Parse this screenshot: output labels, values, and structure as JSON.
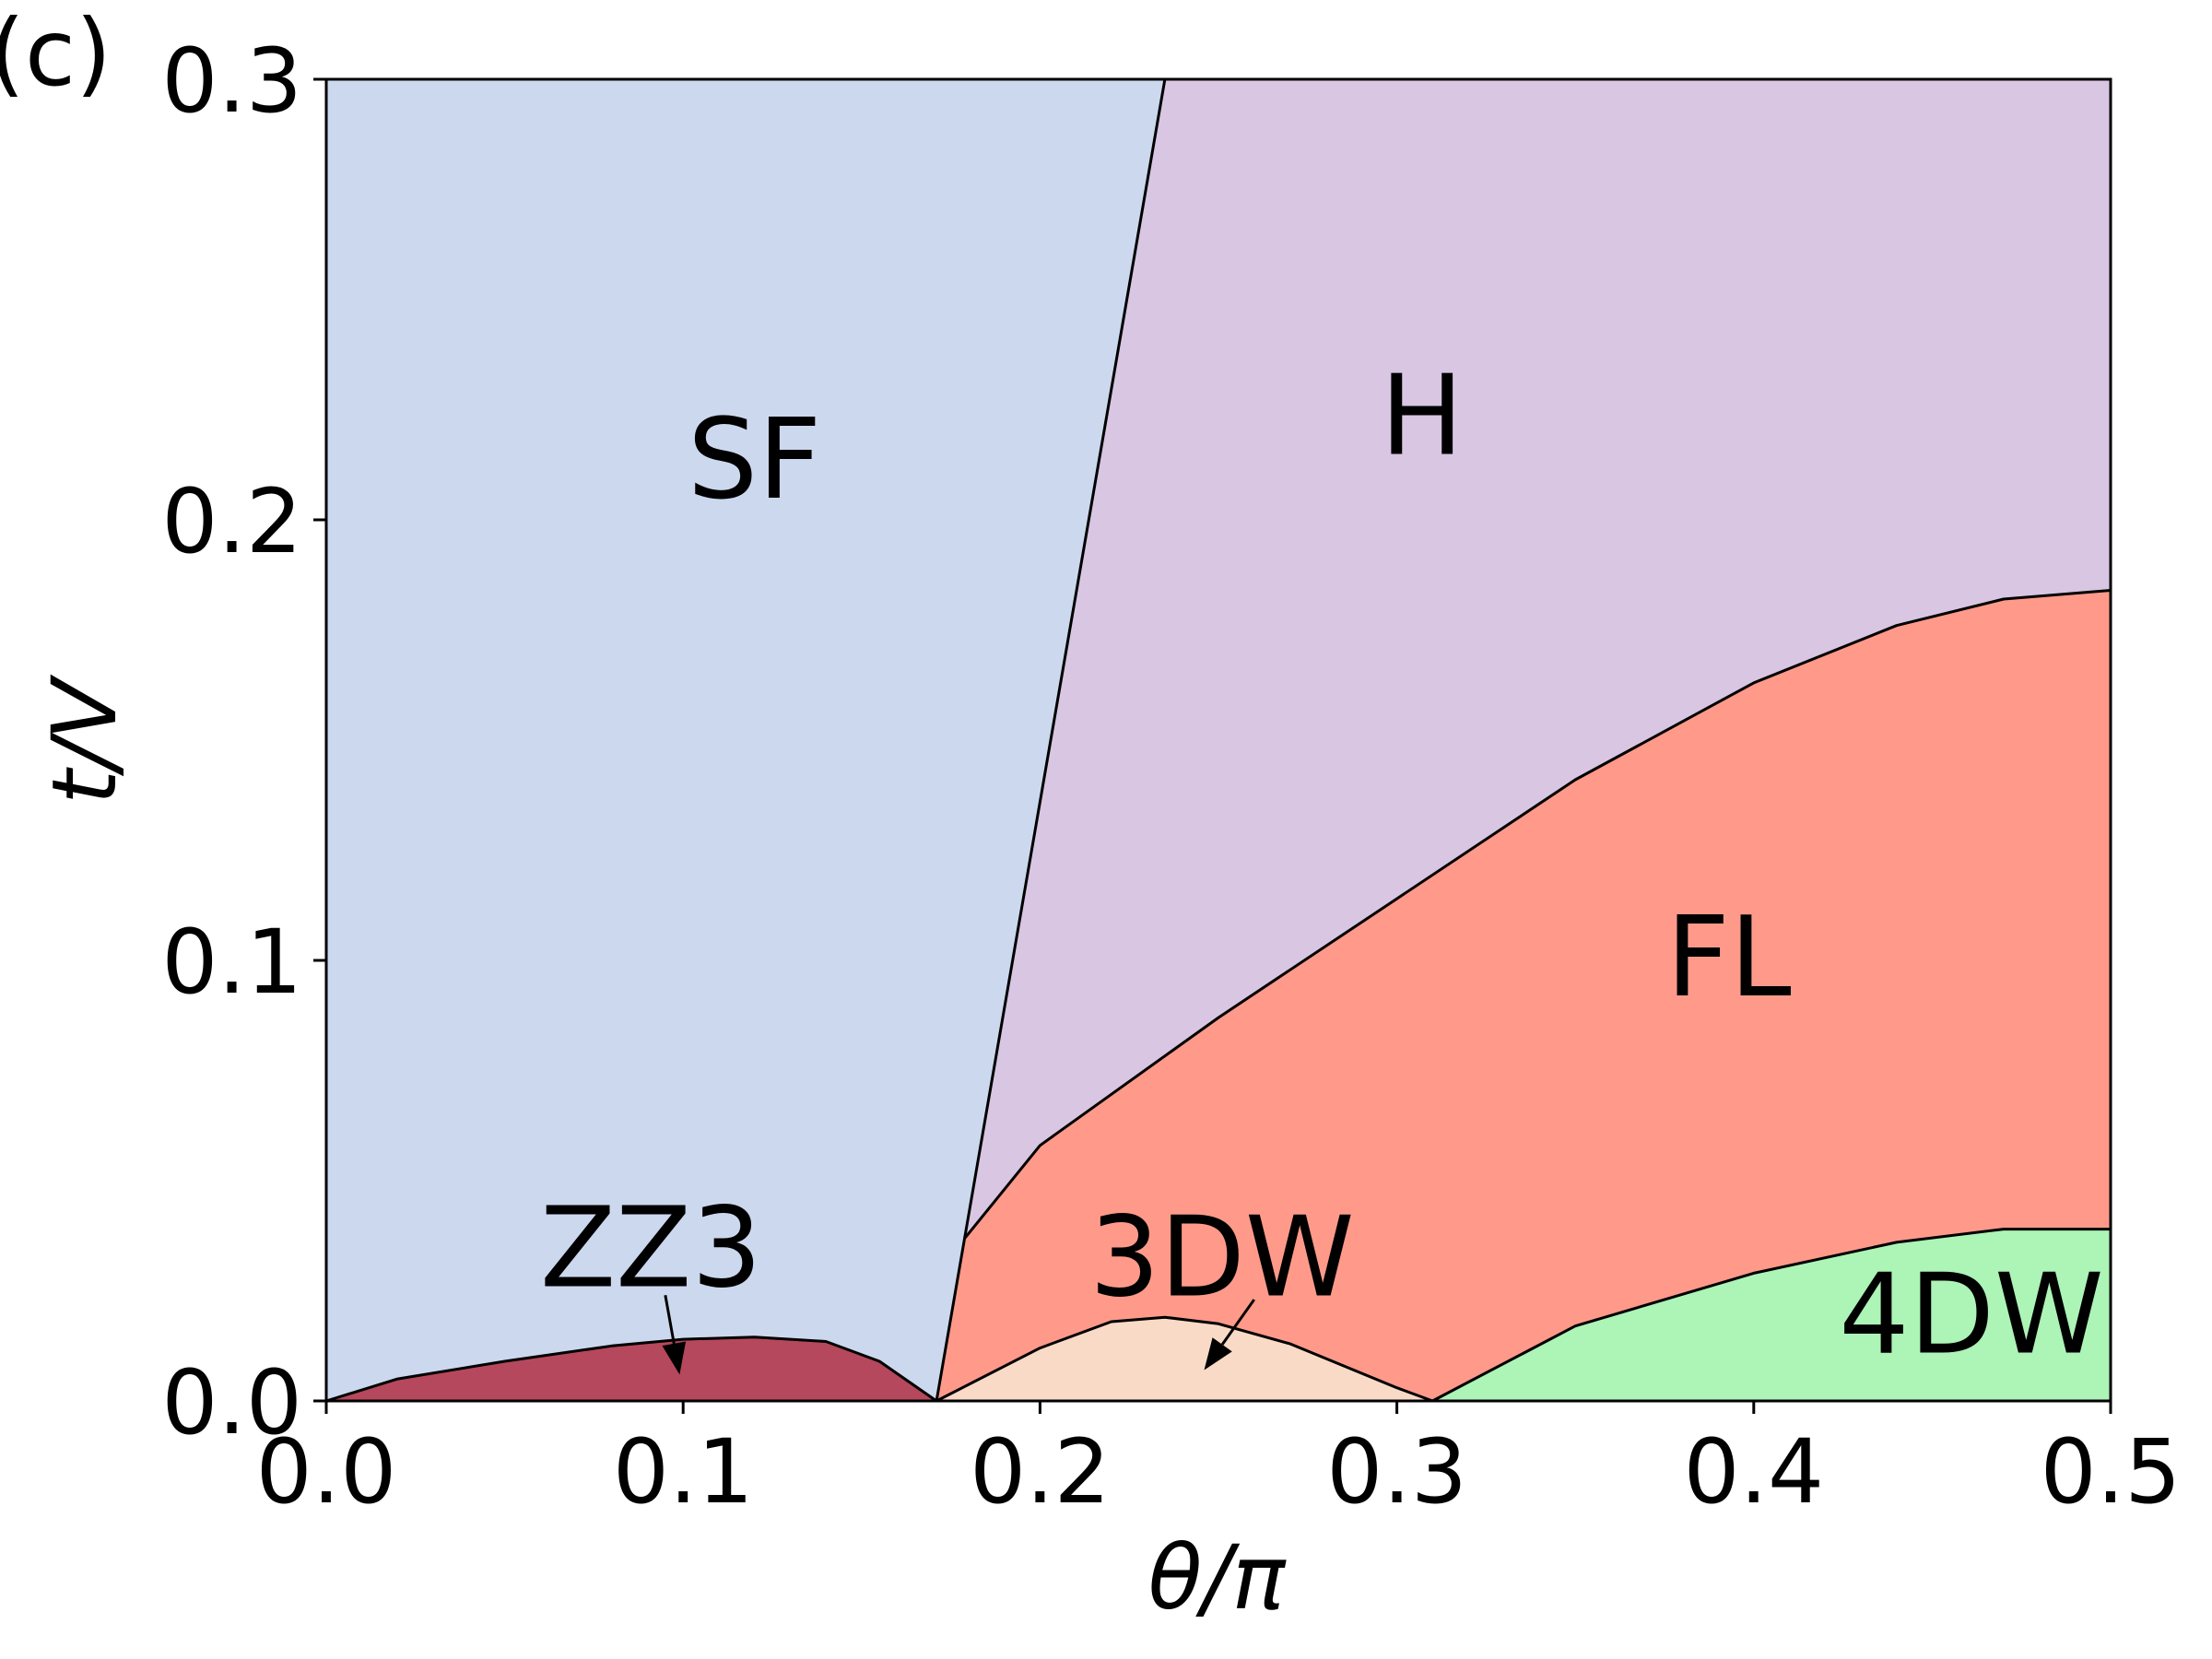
{
  "panel_label": "(c)",
  "chart_data": {
    "type": "area",
    "title": "",
    "xlabel": "θ/π",
    "ylabel": "t/V",
    "xlim": [
      0.0,
      0.5
    ],
    "ylim": [
      0.0,
      0.3
    ],
    "xticks": [
      0.0,
      0.1,
      0.2,
      0.3,
      0.4,
      0.5
    ],
    "yticks": [
      0.0,
      0.1,
      0.2,
      0.3
    ],
    "xtick_labels": [
      "0.0",
      "0.1",
      "0.2",
      "0.3",
      "0.4",
      "0.5"
    ],
    "ytick_labels": [
      "0.0",
      "0.1",
      "0.2",
      "0.3"
    ],
    "grid": false,
    "colors": {
      "SF": "#ccd8ee",
      "H": "#d8c6e2",
      "FL": "#ff9a8a",
      "ZZ3": "#b5485c",
      "3DW": "#f9dac6",
      "4DW": "#adf4b7",
      "boundary": "#000000"
    },
    "phases": [
      {
        "name": "SF",
        "label": "SF",
        "label_at": [
          0.12,
          0.205
        ],
        "polygon": [
          [
            0.0,
            0.0
          ],
          [
            0.0,
            0.3
          ],
          [
            0.235,
            0.3
          ],
          [
            0.171,
            0.0
          ]
        ]
      },
      {
        "name": "H",
        "label": "H",
        "label_at": [
          0.307,
          0.215
        ],
        "polygon": [
          [
            0.235,
            0.3
          ],
          [
            0.5,
            0.3
          ],
          [
            0.5,
            0.184
          ],
          [
            0.47,
            0.182
          ],
          [
            0.44,
            0.176
          ],
          [
            0.4,
            0.163
          ],
          [
            0.35,
            0.141
          ],
          [
            0.3,
            0.114
          ],
          [
            0.25,
            0.087
          ],
          [
            0.2,
            0.058
          ],
          [
            0.179,
            0.037
          ]
        ]
      },
      {
        "name": "FL",
        "label": "FL",
        "label_at": [
          0.393,
          0.092
        ],
        "polygon": [
          [
            0.179,
            0.037
          ],
          [
            0.2,
            0.058
          ],
          [
            0.25,
            0.087
          ],
          [
            0.3,
            0.114
          ],
          [
            0.35,
            0.141
          ],
          [
            0.4,
            0.163
          ],
          [
            0.44,
            0.176
          ],
          [
            0.47,
            0.182
          ],
          [
            0.5,
            0.184
          ],
          [
            0.5,
            0.039
          ],
          [
            0.47,
            0.039
          ],
          [
            0.44,
            0.036
          ],
          [
            0.4,
            0.029
          ],
          [
            0.35,
            0.017
          ],
          [
            0.31,
            0.0
          ],
          [
            0.3,
            0.003
          ],
          [
            0.27,
            0.013
          ],
          [
            0.25,
            0.0175
          ],
          [
            0.235,
            0.019
          ],
          [
            0.22,
            0.018
          ],
          [
            0.2,
            0.012
          ],
          [
            0.171,
            0.0
          ]
        ]
      },
      {
        "name": "ZZ3",
        "label": "ZZ3",
        "label_at": [
          0.091,
          0.026
        ],
        "polygon": [
          [
            0.0,
            0.0
          ],
          [
            0.02,
            0.005
          ],
          [
            0.05,
            0.009
          ],
          [
            0.08,
            0.0125
          ],
          [
            0.1,
            0.014
          ],
          [
            0.12,
            0.0145
          ],
          [
            0.14,
            0.0135
          ],
          [
            0.155,
            0.009
          ],
          [
            0.171,
            0.0
          ]
        ]
      },
      {
        "name": "3DW",
        "label": "3DW",
        "label_at": [
          0.251,
          0.024
        ],
        "polygon": [
          [
            0.171,
            0.0
          ],
          [
            0.2,
            0.012
          ],
          [
            0.22,
            0.018
          ],
          [
            0.235,
            0.019
          ],
          [
            0.25,
            0.0175
          ],
          [
            0.27,
            0.013
          ],
          [
            0.3,
            0.003
          ],
          [
            0.31,
            0.0
          ]
        ]
      },
      {
        "name": "4DW",
        "label": "4DW",
        "label_at": [
          0.461,
          0.011
        ],
        "polygon": [
          [
            0.31,
            0.0
          ],
          [
            0.35,
            0.017
          ],
          [
            0.4,
            0.029
          ],
          [
            0.44,
            0.036
          ],
          [
            0.47,
            0.039
          ],
          [
            0.5,
            0.039
          ],
          [
            0.5,
            0.0
          ]
        ]
      }
    ],
    "boundaries": [
      [
        [
          0.171,
          0.0
        ],
        [
          0.235,
          0.3
        ]
      ],
      [
        [
          0.179,
          0.037
        ],
        [
          0.2,
          0.058
        ],
        [
          0.25,
          0.087
        ],
        [
          0.3,
          0.114
        ],
        [
          0.35,
          0.141
        ],
        [
          0.4,
          0.163
        ],
        [
          0.44,
          0.176
        ],
        [
          0.47,
          0.182
        ],
        [
          0.5,
          0.184
        ]
      ],
      [
        [
          0.0,
          0.0
        ],
        [
          0.02,
          0.005
        ],
        [
          0.05,
          0.009
        ],
        [
          0.08,
          0.0125
        ],
        [
          0.1,
          0.014
        ],
        [
          0.12,
          0.0145
        ],
        [
          0.14,
          0.0135
        ],
        [
          0.155,
          0.009
        ],
        [
          0.171,
          0.0
        ]
      ],
      [
        [
          0.171,
          0.0
        ],
        [
          0.2,
          0.012
        ],
        [
          0.22,
          0.018
        ],
        [
          0.235,
          0.019
        ],
        [
          0.25,
          0.0175
        ],
        [
          0.27,
          0.013
        ],
        [
          0.3,
          0.003
        ],
        [
          0.31,
          0.0
        ]
      ],
      [
        [
          0.31,
          0.0
        ],
        [
          0.35,
          0.017
        ],
        [
          0.4,
          0.029
        ],
        [
          0.44,
          0.036
        ],
        [
          0.47,
          0.039
        ],
        [
          0.5,
          0.039
        ]
      ]
    ],
    "annotations": [
      {
        "name": "ZZ3",
        "from": [
          0.095,
          0.024
        ],
        "to": [
          0.099,
          0.006
        ]
      },
      {
        "name": "3DW",
        "from": [
          0.26,
          0.023
        ],
        "to": [
          0.246,
          0.007
        ]
      }
    ]
  }
}
